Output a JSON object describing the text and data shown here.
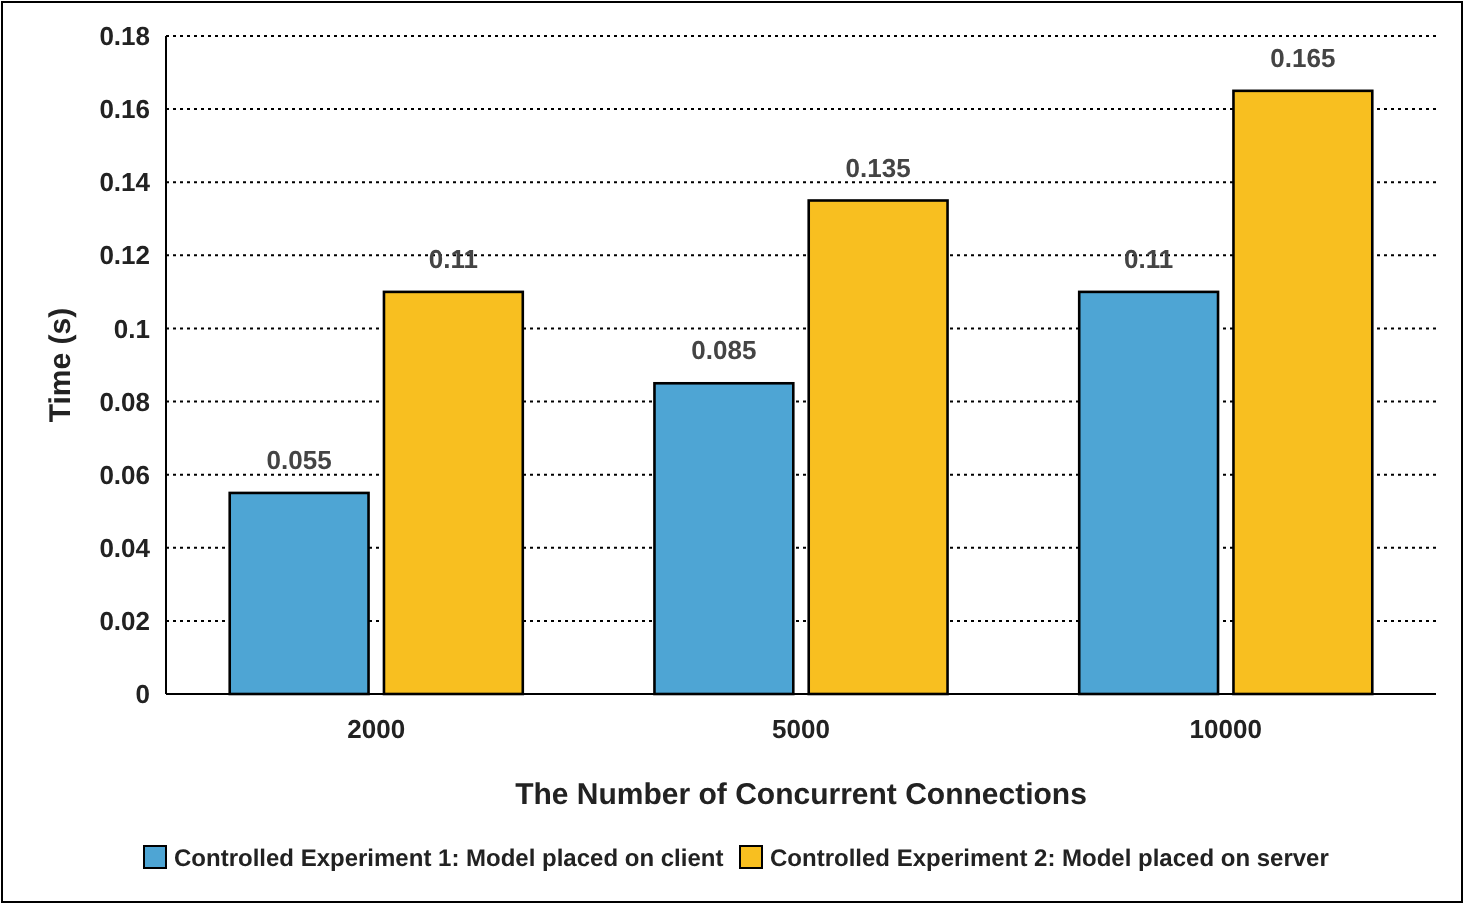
{
  "chart_data": {
    "type": "bar",
    "xlabel": "The Number of Concurrent Connections",
    "ylabel": "Time (s)",
    "categories": [
      "2000",
      "5000",
      "10000"
    ],
    "series": [
      {
        "name": "Controlled Experiment 1: Model placed on client",
        "color": "#4ea5d4",
        "values": [
          0.055,
          0.085,
          0.11
        ]
      },
      {
        "name": "Controlled Experiment 2: Model placed on server",
        "color": "#f8bf20",
        "values": [
          0.11,
          0.135,
          0.165
        ]
      }
    ],
    "ylim": [
      0,
      0.18
    ],
    "yticks": [
      0,
      0.02,
      0.04,
      0.06,
      0.08,
      0.1,
      0.12,
      0.14,
      0.16,
      0.18
    ],
    "grid": "y",
    "legend": "bottom",
    "data_labels": true
  }
}
